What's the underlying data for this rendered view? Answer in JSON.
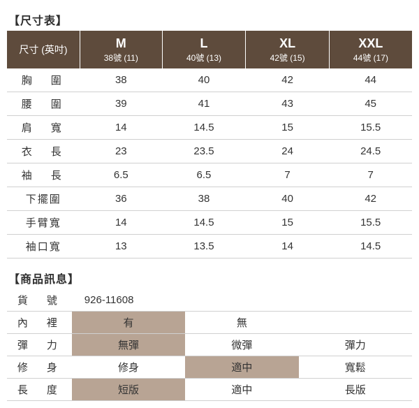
{
  "colors": {
    "header_bg": "#5e4b3c",
    "header_text": "#ffffff",
    "highlight_bg": "#b8a494",
    "border": "#d0d0d0",
    "text": "#333333",
    "bg": "#ffffff"
  },
  "size_section": {
    "title": "【尺寸表】",
    "header_label": "尺寸 (英吋)",
    "columns": [
      {
        "main": "M",
        "sub": "38號 (11)"
      },
      {
        "main": "L",
        "sub": "40號 (13)"
      },
      {
        "main": "XL",
        "sub": "42號 (15)"
      },
      {
        "main": "XXL",
        "sub": "44號 (17)"
      }
    ],
    "rows": [
      {
        "label": "胸　圍",
        "values": [
          "38",
          "40",
          "42",
          "44"
        ]
      },
      {
        "label": "腰　圍",
        "values": [
          "39",
          "41",
          "43",
          "45"
        ]
      },
      {
        "label": "肩　寬",
        "values": [
          "14",
          "14.5",
          "15",
          "15.5"
        ]
      },
      {
        "label": "衣　長",
        "values": [
          "23",
          "23.5",
          "24",
          "24.5"
        ]
      },
      {
        "label": "袖　長",
        "values": [
          "6.5",
          "6.5",
          "7",
          "7"
        ]
      },
      {
        "label": "下擺圍",
        "values": [
          "36",
          "38",
          "40",
          "42"
        ],
        "tight": true
      },
      {
        "label": "手臂寬",
        "values": [
          "14",
          "14.5",
          "15",
          "15.5"
        ],
        "tight": true
      },
      {
        "label": "袖口寬",
        "values": [
          "13",
          "13.5",
          "14",
          "14.5"
        ],
        "tight": true
      }
    ]
  },
  "info_section": {
    "title": "【商品訊息】",
    "rows": [
      {
        "label": "貨　號",
        "cells": [
          {
            "text": "926-11608",
            "span": 3,
            "align": "left"
          }
        ]
      },
      {
        "label": "內　裡",
        "cells": [
          {
            "text": "有",
            "hl": true
          },
          {
            "text": "無"
          },
          {
            "text": ""
          }
        ]
      },
      {
        "label": "彈　力",
        "cells": [
          {
            "text": "無彈",
            "hl": true
          },
          {
            "text": "微彈"
          },
          {
            "text": "彈力"
          }
        ]
      },
      {
        "label": "修　身",
        "cells": [
          {
            "text": "修身"
          },
          {
            "text": "適中",
            "hl": true
          },
          {
            "text": "寬鬆"
          }
        ]
      },
      {
        "label": "長　度",
        "cells": [
          {
            "text": "短版",
            "hl": true
          },
          {
            "text": "適中"
          },
          {
            "text": "長版"
          }
        ]
      }
    ]
  }
}
